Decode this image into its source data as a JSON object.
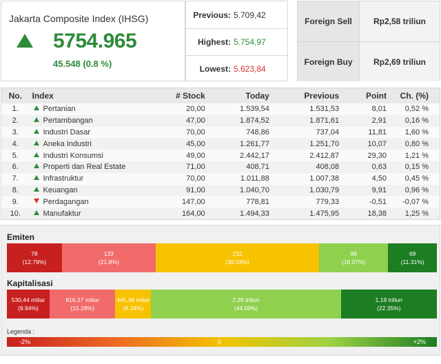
{
  "ihsg": {
    "title": "Jakarta Composite Index (IHSG)",
    "value": "5754.965",
    "change": "45.548 (0.8 %)",
    "direction": "up"
  },
  "stats": {
    "previous_label": "Previous:",
    "previous_value": "5.709,42",
    "highest_label": "Highest:",
    "highest_value": "5.754,97",
    "lowest_label": "Lowest:",
    "lowest_value": "5.623,84"
  },
  "foreign": {
    "sell_label": "Foreign Sell",
    "sell_value": "Rp2,58 triliun",
    "buy_label": "Foreign Buy",
    "buy_value": "Rp2,69 triliun"
  },
  "table": {
    "headers": [
      "No.",
      "Index",
      "# Stock",
      "Today",
      "Previous",
      "Point",
      "Ch. (%)"
    ],
    "rows": [
      {
        "no": "1.",
        "name": "Pertanian",
        "dir": "up",
        "stock": "20,00",
        "today": "1.539,54",
        "previous": "1.531,53",
        "point": "8,01",
        "ch": "0,52 %"
      },
      {
        "no": "2.",
        "name": "Pertambangan",
        "dir": "up",
        "stock": "47,00",
        "today": "1.874,52",
        "previous": "1.871,61",
        "point": "2,91",
        "ch": "0,16 %"
      },
      {
        "no": "3.",
        "name": "Industri Dasar",
        "dir": "up",
        "stock": "70,00",
        "today": "748,86",
        "previous": "737,04",
        "point": "11,81",
        "ch": "1,60 %"
      },
      {
        "no": "4.",
        "name": "Aneka Industri",
        "dir": "up",
        "stock": "45,00",
        "today": "1.261,77",
        "previous": "1.251,70",
        "point": "10,07",
        "ch": "0,80 %"
      },
      {
        "no": "5.",
        "name": "Industri Konsumsi",
        "dir": "up",
        "stock": "49,00",
        "today": "2.442,17",
        "previous": "2.412,87",
        "point": "29,30",
        "ch": "1,21 %"
      },
      {
        "no": "6.",
        "name": "Properti dan Real Estate",
        "dir": "up",
        "stock": "71,00",
        "today": "408,71",
        "previous": "408,08",
        "point": "0,63",
        "ch": "0,15 %"
      },
      {
        "no": "7.",
        "name": "Infrastruktur",
        "dir": "up",
        "stock": "70,00",
        "today": "1.011,88",
        "previous": "1.007,38",
        "point": "4,50",
        "ch": "0,45 %"
      },
      {
        "no": "8.",
        "name": "Keuangan",
        "dir": "up",
        "stock": "91,00",
        "today": "1.040,70",
        "previous": "1.030,79",
        "point": "9,91",
        "ch": "0,96 %"
      },
      {
        "no": "9.",
        "name": "Perdagangan",
        "dir": "down",
        "stock": "147,00",
        "today": "778,81",
        "previous": "779,33",
        "point": "-0,51",
        "ch": "-0,07 %"
      },
      {
        "no": "10.",
        "name": "Manufaktur",
        "dir": "up",
        "stock": "164,00",
        "today": "1.494,33",
        "previous": "1.475,95",
        "point": "18,38",
        "ch": "1,25 %"
      }
    ]
  },
  "emiten": {
    "title": "Emiten",
    "segments": [
      {
        "value": "78",
        "pct": "(12.79%)",
        "share": 12.79,
        "color": "c1"
      },
      {
        "value": "133",
        "pct": "(21.8%)",
        "share": 21.8,
        "color": "c2"
      },
      {
        "value": "232",
        "pct": "(38.03%)",
        "share": 38.03,
        "color": "c3"
      },
      {
        "value": "98",
        "pct": "(16.07%)",
        "share": 16.07,
        "color": "c4"
      },
      {
        "value": "69",
        "pct": "(11.31%)",
        "share": 11.31,
        "color": "c5"
      }
    ]
  },
  "kapitalisasi": {
    "title": "Kapitalisasi",
    "segments": [
      {
        "value": "530,44 miliar",
        "pct": "(9.94%)",
        "share": 9.94,
        "color": "c1"
      },
      {
        "value": "816,37 miliar",
        "pct": "(15.29%)",
        "share": 15.29,
        "color": "c2"
      },
      {
        "value": "445,36 miliar",
        "pct": "(8.34%)",
        "share": 8.34,
        "color": "c3"
      },
      {
        "value": "2,35 triliun",
        "pct": "(44.09%)",
        "share": 44.09,
        "color": "c4"
      },
      {
        "value": "1,19 triliun",
        "pct": "(22.35%)",
        "share": 22.35,
        "color": "c5"
      }
    ]
  },
  "legend": {
    "label": "Legenda :",
    "min": "-2%",
    "mid": "0",
    "max": "+2%"
  },
  "colors": {
    "up": "#2e8b3a",
    "down": "#d62f2f",
    "c1": "#c81f1f",
    "c2": "#f26b6b",
    "c3": "#f7c300",
    "c4": "#8fd14f",
    "c5": "#1d7d22"
  }
}
